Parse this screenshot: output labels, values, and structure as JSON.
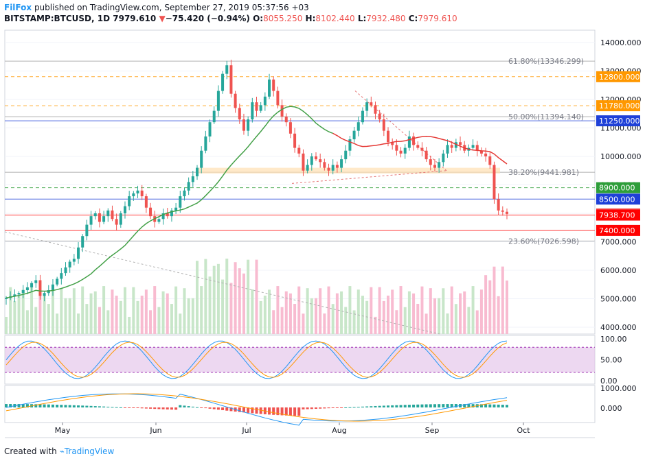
{
  "header": {
    "publisher": "FilFox",
    "published_text": " published on TradingView.com, September 27, 2019 05:37:56 +03",
    "symbol": "BITSTAMP:BTCUSD, 1D",
    "last": "7979.610",
    "change_arrow": "▼",
    "change": "−75.420 (−0.94%)",
    "o_label": "O:",
    "o_value": "8055.250",
    "h_label": "H:",
    "h_value": "8102.440",
    "l_label": "L:",
    "l_value": "7932.480",
    "c_label": "C:",
    "c_value": "7979.610"
  },
  "footer": {
    "created_with": "Created with",
    "brand": "TradingView"
  },
  "colors": {
    "up": "#26a69a",
    "down": "#ef5350",
    "ma": "#43a047",
    "ma_red": "#e53935",
    "volume_up": "#c8e6c9",
    "volume_down": "#f8bbd0",
    "rsi_band": "#e1bee7",
    "fib": "#b0b0b0",
    "orange": "#ff9800",
    "blue": "#1e40d8",
    "green_badge": "#2e9e3a",
    "red_badge": "#ff0000"
  },
  "chart_data": {
    "type": "candlestick",
    "x_ticks": [
      "May",
      "Jun",
      "Jul",
      "Aug",
      "Sep",
      "Oct"
    ],
    "y_ticks": [
      "14000.000",
      "13000.000",
      "12000.000",
      "11000.000",
      "10000.000",
      "9000.000",
      "8000.000",
      "7000.000",
      "6000.000",
      "5000.000",
      "4000.000"
    ],
    "y_values": [
      14000,
      13000,
      12000,
      11000,
      10000,
      9000,
      8000,
      7000,
      6000,
      5000,
      4000
    ],
    "ylim": [
      3800,
      14400
    ],
    "fib_levels": [
      {
        "label": "61.80%(13346.299)",
        "value": 13346.299
      },
      {
        "label": "50.00%(11394.140)",
        "value": 11394.14
      },
      {
        "label": "38.20%(9441.981)",
        "value": 9441.981
      },
      {
        "label": "23.60%(7026.598)",
        "value": 7026.598
      }
    ],
    "price_badges": [
      {
        "label": "12800.000",
        "value": 12800,
        "color": "#ff9800"
      },
      {
        "label": "11780.000",
        "value": 11780,
        "color": "#ff9800"
      },
      {
        "label": "11250.000",
        "value": 11250,
        "color": "#1e40d8"
      },
      {
        "label": "8900.000",
        "value": 8900,
        "color": "#2e9e3a"
      },
      {
        "label": "8500.000",
        "value": 8500,
        "color": "#1e40d8"
      },
      {
        "label": "7979.610",
        "value": 7979.61,
        "color": "#ef5350"
      },
      {
        "label": "7938.700",
        "value": 7938.7,
        "color": "#ff0000"
      },
      {
        "label": "7400.000",
        "value": 7400,
        "color": "#ff0000"
      }
    ],
    "closes": [
      5030,
      5080,
      5150,
      5200,
      5300,
      5400,
      5550,
      5650,
      5100,
      5200,
      5300,
      5500,
      5700,
      5900,
      6100,
      6300,
      6400,
      6800,
      7200,
      7600,
      7900,
      8000,
      7700,
      7900,
      8100,
      7800,
      7600,
      8000,
      8250,
      8600,
      8700,
      8800,
      8600,
      8200,
      7900,
      7700,
      7800,
      8000,
      7900,
      8100,
      8200,
      8600,
      8800,
      9100,
      9300,
      9600,
      10200,
      10700,
      11200,
      11600,
      12300,
      12900,
      13200,
      12200,
      11700,
      11300,
      10900,
      11300,
      11900,
      11600,
      11800,
      12100,
      12700,
      12300,
      11800,
      11400,
      11200,
      10800,
      10300,
      10100,
      9500,
      9700,
      10000,
      9900,
      9800,
      9600,
      9500,
      9700,
      9600,
      9900,
      10200,
      10600,
      10900,
      11200,
      11600,
      11900,
      11800,
      11500,
      11300,
      10900,
      10500,
      10400,
      10200,
      10100,
      10300,
      10700,
      10400,
      10300,
      10200,
      9900,
      9700,
      9600,
      9800,
      10100,
      10400,
      10300,
      10500,
      10400,
      10200,
      10300,
      10400,
      10200,
      10100,
      10000,
      9700,
      8500,
      8100,
      8055,
      7979
    ]
  },
  "rsi": {
    "ticks": [
      "100.00",
      "50.00",
      "0.00"
    ],
    "tick_values": [
      100,
      50,
      0
    ]
  },
  "macd": {
    "ticks": [
      "1000.000",
      "0.000"
    ],
    "tick_values": [
      1000,
      0
    ]
  }
}
